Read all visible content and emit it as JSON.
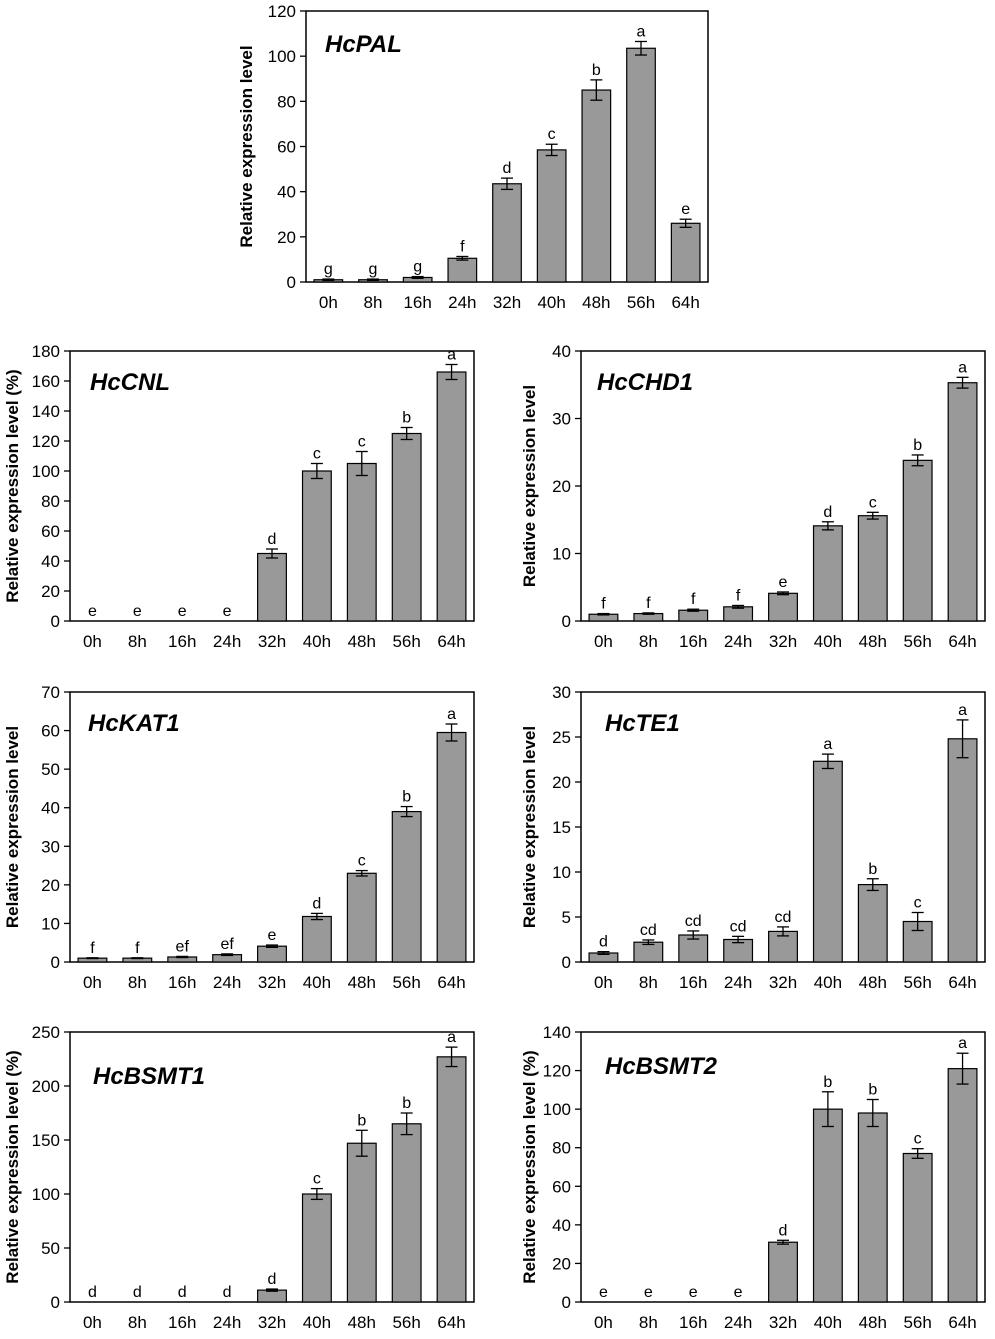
{
  "chart_data": [
    {
      "type": "bar",
      "title": "HcPAL",
      "xlabel": "",
      "ylabel": "Relative expression level",
      "categories": [
        "0h",
        "8h",
        "16h",
        "24h",
        "32h",
        "40h",
        "48h",
        "56h",
        "64h"
      ],
      "values": [
        1,
        1,
        2,
        10.5,
        43.5,
        58.5,
        85,
        103.5,
        26
      ],
      "errors": [
        0.3,
        0.3,
        0.4,
        0.8,
        2.5,
        2.5,
        4.5,
        3.0,
        1.8
      ],
      "letters": [
        "g",
        "g",
        "g",
        "f",
        "d",
        "c",
        "b",
        "a",
        "e"
      ],
      "ylim": [
        0,
        120
      ],
      "yticks": [
        0,
        20,
        40,
        60,
        80,
        100,
        120
      ],
      "ytick_labels": [
        "0",
        "20",
        "40",
        "60",
        "80",
        "100",
        "120"
      ]
    },
    {
      "type": "bar",
      "title": "HcCNL",
      "xlabel": "",
      "ylabel": "Relative expression level (%)",
      "categories": [
        "0h",
        "8h",
        "16h",
        "24h",
        "32h",
        "40h",
        "48h",
        "56h",
        "64h"
      ],
      "values": [
        0,
        0,
        0,
        0,
        45,
        100,
        105,
        125,
        166
      ],
      "errors": [
        0,
        0,
        0,
        0,
        3,
        5,
        8,
        4,
        5
      ],
      "letters": [
        "e",
        "e",
        "e",
        "e",
        "d",
        "c",
        "c",
        "b",
        "a"
      ],
      "ylim": [
        0,
        180
      ],
      "yticks": [
        0,
        20,
        40,
        60,
        80,
        100,
        120,
        140,
        160,
        180
      ],
      "ytick_labels": [
        "0",
        "20",
        "40",
        "60",
        "80",
        "100",
        "120",
        "140",
        "160",
        "180"
      ]
    },
    {
      "type": "bar",
      "title": "HcCHD1",
      "xlabel": "",
      "ylabel": "Relative expression level",
      "categories": [
        "0h",
        "8h",
        "16h",
        "24h",
        "32h",
        "40h",
        "48h",
        "56h",
        "64h"
      ],
      "values": [
        1.0,
        1.1,
        1.6,
        2.1,
        4.1,
        14.1,
        15.6,
        23.8,
        35.3
      ],
      "errors": [
        0.1,
        0.1,
        0.15,
        0.2,
        0.2,
        0.6,
        0.5,
        0.8,
        0.8
      ],
      "letters": [
        "f",
        "f",
        "f",
        "f",
        "e",
        "d",
        "c",
        "b",
        "a"
      ],
      "ylim": [
        0,
        40
      ],
      "yticks": [
        0,
        10,
        20,
        30,
        40
      ],
      "ytick_labels": [
        "0",
        "10",
        "20",
        "30",
        "40"
      ]
    },
    {
      "type": "bar",
      "title": "HcKAT1",
      "xlabel": "",
      "ylabel": "Relative expression level",
      "categories": [
        "0h",
        "8h",
        "16h",
        "24h",
        "32h",
        "40h",
        "48h",
        "56h",
        "64h"
      ],
      "values": [
        1.0,
        1.0,
        1.3,
        1.9,
        4.1,
        11.8,
        23.0,
        39.0,
        59.5
      ],
      "errors": [
        0.1,
        0.1,
        0.15,
        0.2,
        0.3,
        0.8,
        0.7,
        1.3,
        2.2
      ],
      "letters": [
        "f",
        "f",
        "ef",
        "ef",
        "e",
        "d",
        "c",
        "b",
        "a"
      ],
      "ylim": [
        0,
        70
      ],
      "yticks": [
        0,
        10,
        20,
        30,
        40,
        50,
        60,
        70
      ],
      "ytick_labels": [
        "0",
        "10",
        "20",
        "30",
        "40",
        "50",
        "60",
        "70"
      ]
    },
    {
      "type": "bar",
      "title": "HcTE1",
      "xlabel": "",
      "ylabel": "Relative expression level",
      "categories": [
        "0h",
        "8h",
        "16h",
        "24h",
        "32h",
        "40h",
        "48h",
        "56h",
        "64h"
      ],
      "values": [
        1.0,
        2.2,
        3.0,
        2.5,
        3.4,
        22.3,
        8.6,
        4.5,
        24.8
      ],
      "errors": [
        0.15,
        0.25,
        0.45,
        0.35,
        0.5,
        0.8,
        0.65,
        1.0,
        2.1
      ],
      "letters": [
        "d",
        "cd",
        "cd",
        "cd",
        "cd",
        "a",
        "b",
        "c",
        "a"
      ],
      "ylim": [
        0,
        30
      ],
      "yticks": [
        0,
        5,
        10,
        15,
        20,
        25,
        30
      ],
      "ytick_labels": [
        "0",
        "5",
        "10",
        "15",
        "20",
        "25",
        "30"
      ]
    },
    {
      "type": "bar",
      "title": "HcBSMT1",
      "xlabel": "",
      "ylabel": "Relative expression level (%)",
      "categories": [
        "0h",
        "8h",
        "16h",
        "24h",
        "32h",
        "40h",
        "48h",
        "56h",
        "64h"
      ],
      "values": [
        0,
        0,
        0,
        0,
        11,
        100,
        147,
        165,
        227
      ],
      "errors": [
        0,
        0,
        0,
        0,
        1,
        5,
        12,
        10,
        9
      ],
      "letters": [
        "d",
        "d",
        "d",
        "d",
        "d",
        "c",
        "b",
        "b",
        "a"
      ],
      "ylim": [
        0,
        250
      ],
      "yticks": [
        0,
        50,
        100,
        150,
        200,
        250
      ],
      "ytick_labels": [
        "0",
        "50",
        "100",
        "150",
        "200",
        "250"
      ]
    },
    {
      "type": "bar",
      "title": "HcBSMT2",
      "xlabel": "",
      "ylabel": "Relative expression level (%)",
      "categories": [
        "0h",
        "8h",
        "16h",
        "24h",
        "32h",
        "40h",
        "48h",
        "56h",
        "64h"
      ],
      "values": [
        0,
        0,
        0,
        0,
        31,
        100,
        98,
        77,
        121
      ],
      "errors": [
        0,
        0,
        0,
        0,
        1,
        9,
        7,
        2.5,
        8
      ],
      "letters": [
        "e",
        "e",
        "e",
        "e",
        "d",
        "b",
        "b",
        "c",
        "a"
      ],
      "ylim": [
        0,
        140
      ],
      "yticks": [
        0,
        20,
        40,
        60,
        80,
        100,
        120,
        140
      ],
      "ytick_labels": [
        "0",
        "20",
        "40",
        "60",
        "80",
        "100",
        "120",
        "140"
      ]
    }
  ]
}
